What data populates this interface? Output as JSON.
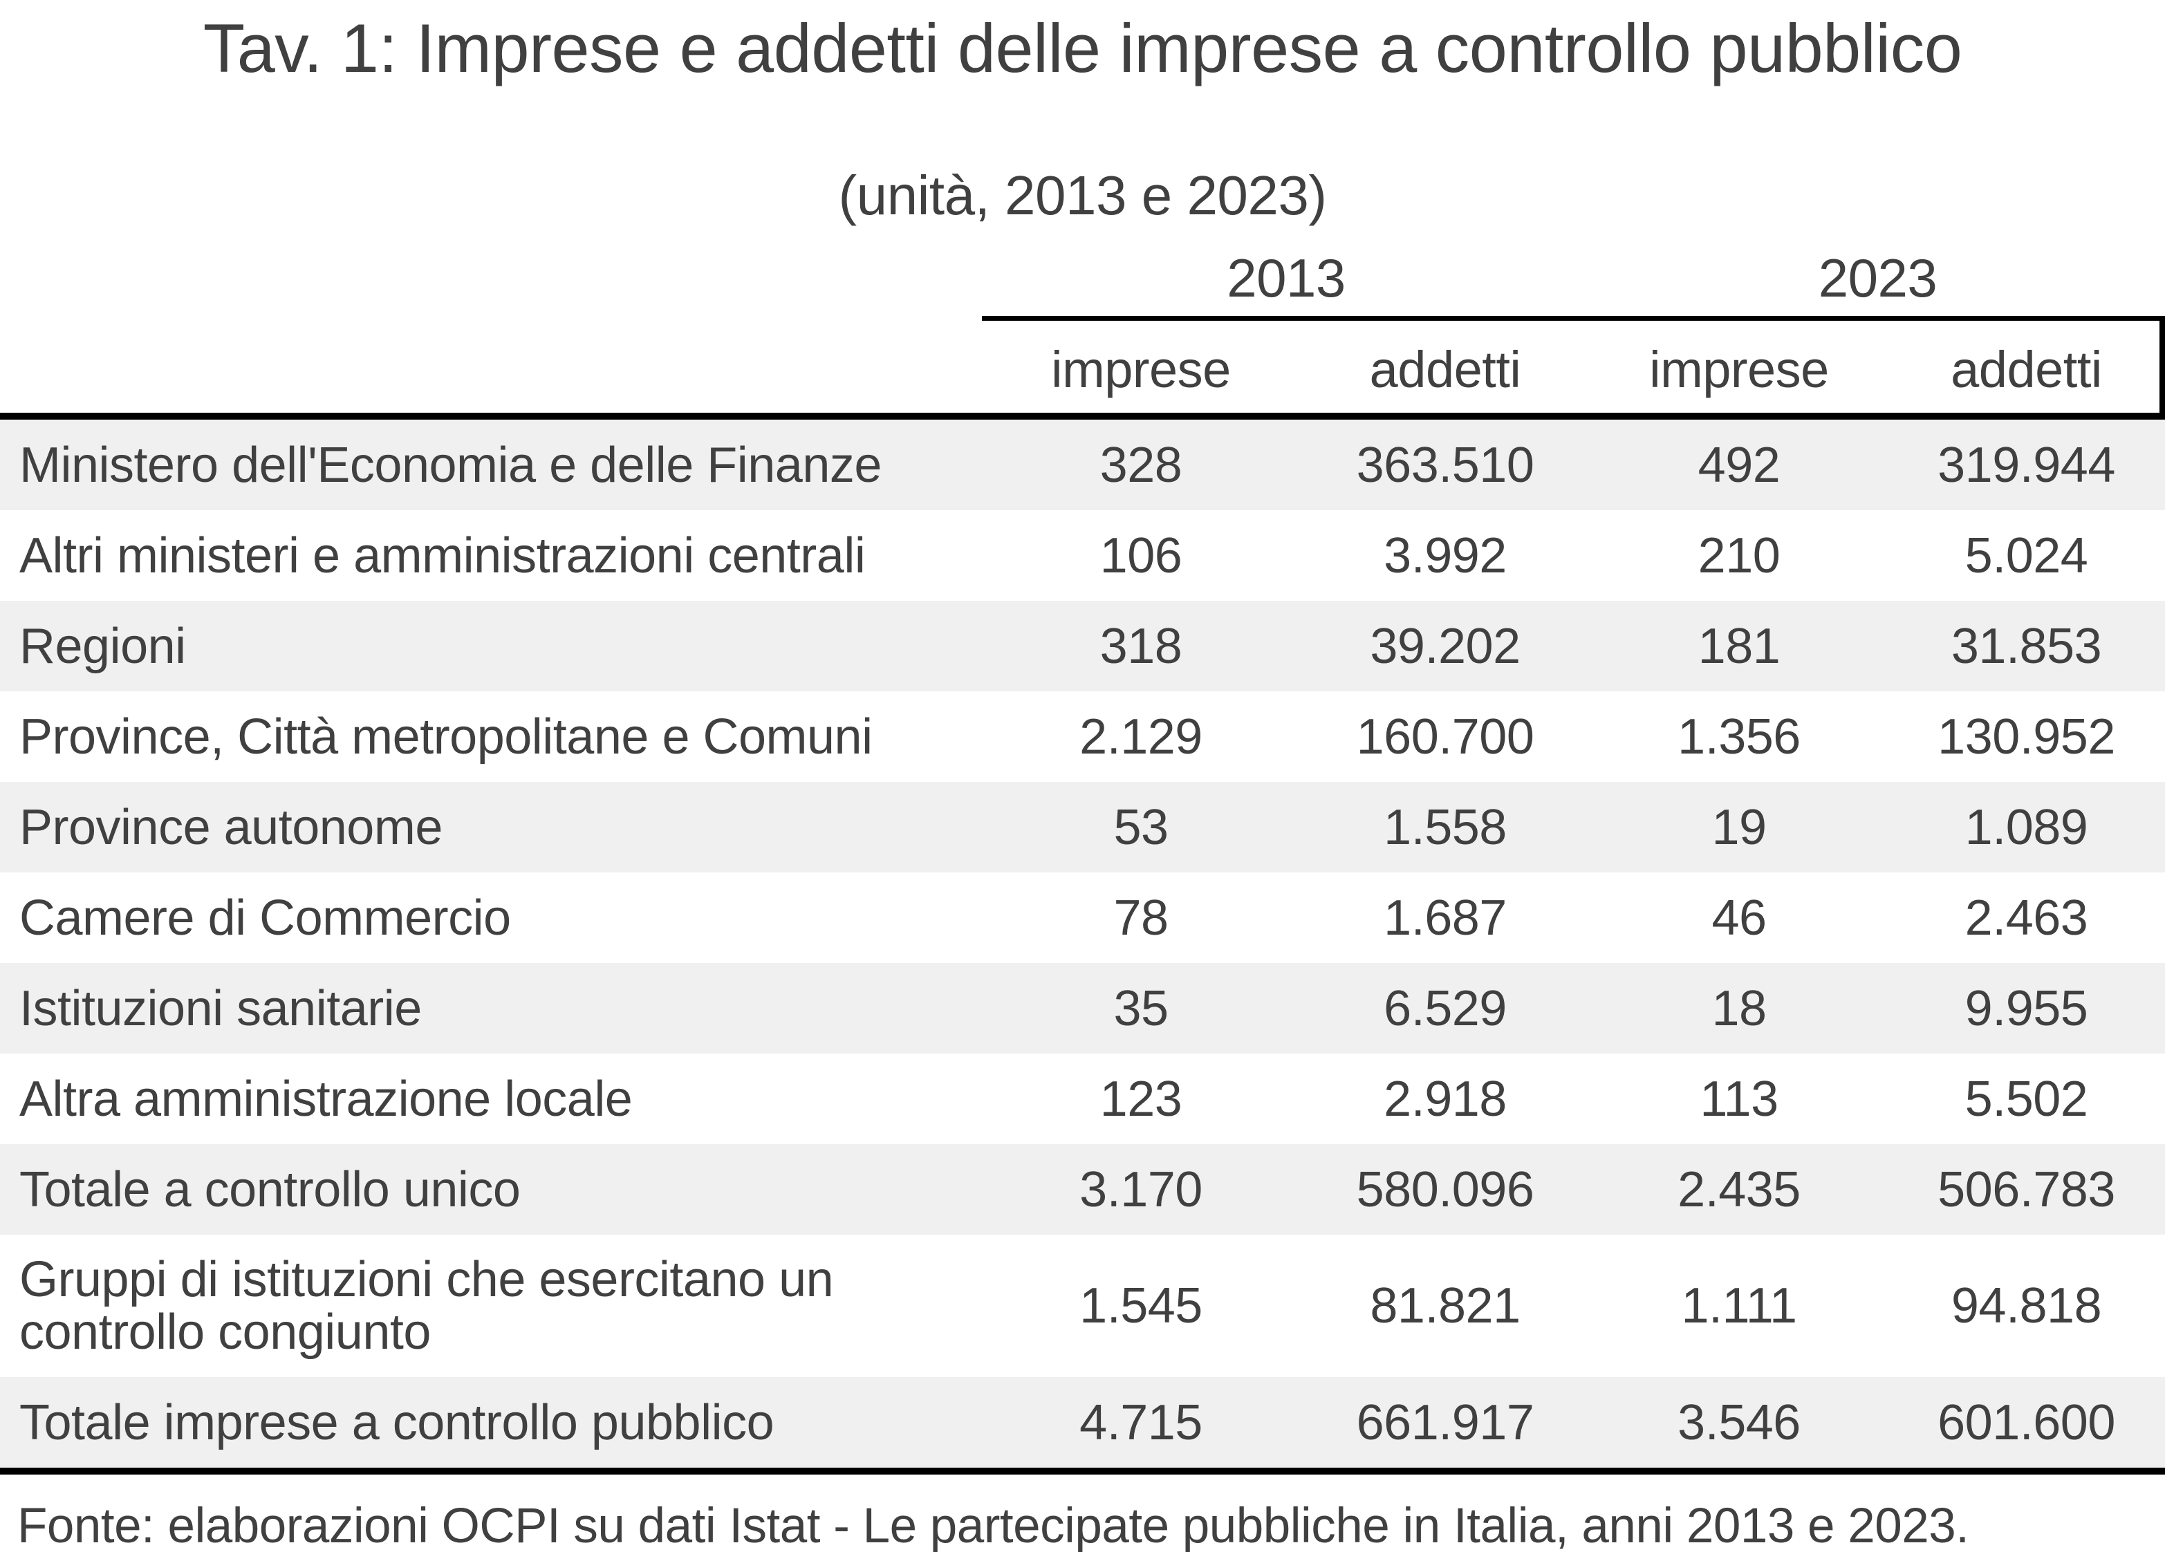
{
  "title": "Tav. 1: Imprese e addetti delle imprese a controllo pubblico",
  "subtitle": "(unità, 2013 e 2023)",
  "table": {
    "year_groups": [
      "2013",
      "2023"
    ],
    "sub_headers": [
      "imprese",
      "addetti",
      "imprese",
      "addetti"
    ],
    "rows": [
      {
        "label": "Ministero dell'Economia e delle Finanze",
        "values": [
          "328",
          "363.510",
          "492",
          "319.944"
        ],
        "shaded": true
      },
      {
        "label": "Altri ministeri e amministrazioni centrali",
        "values": [
          "106",
          "3.992",
          "210",
          "5.024"
        ],
        "shaded": false
      },
      {
        "label": "Regioni",
        "values": [
          "318",
          "39.202",
          "181",
          "31.853"
        ],
        "shaded": true
      },
      {
        "label": "Province, Città metropolitane e Comuni",
        "values": [
          "2.129",
          "160.700",
          "1.356",
          "130.952"
        ],
        "shaded": false
      },
      {
        "label": "Province autonome",
        "values": [
          "53",
          "1.558",
          "19",
          "1.089"
        ],
        "shaded": true
      },
      {
        "label": "Camere di Commercio",
        "values": [
          "78",
          "1.687",
          "46",
          "2.463"
        ],
        "shaded": false
      },
      {
        "label": "Istituzioni sanitarie",
        "values": [
          "35",
          "6.529",
          "18",
          "9.955"
        ],
        "shaded": true
      },
      {
        "label": "Altra amministrazione locale",
        "values": [
          "123",
          "2.918",
          "113",
          "5.502"
        ],
        "shaded": false
      },
      {
        "label": "Totale a controllo unico",
        "values": [
          "3.170",
          "580.096",
          "2.435",
          "506.783"
        ],
        "shaded": true
      },
      {
        "label": "Gruppi di istituzioni che esercitano un controllo congiunto",
        "values": [
          "1.545",
          "81.821",
          "1.111",
          "94.818"
        ],
        "shaded": false
      },
      {
        "label": "Totale imprese a controllo pubblico",
        "values": [
          "4.715",
          "661.917",
          "3.546",
          "601.600"
        ],
        "shaded": true
      }
    ]
  },
  "footer": "Fonte: elaborazioni OCPI su dati Istat - Le partecipate pubbliche in Italia, anni 2013 e 2023."
}
